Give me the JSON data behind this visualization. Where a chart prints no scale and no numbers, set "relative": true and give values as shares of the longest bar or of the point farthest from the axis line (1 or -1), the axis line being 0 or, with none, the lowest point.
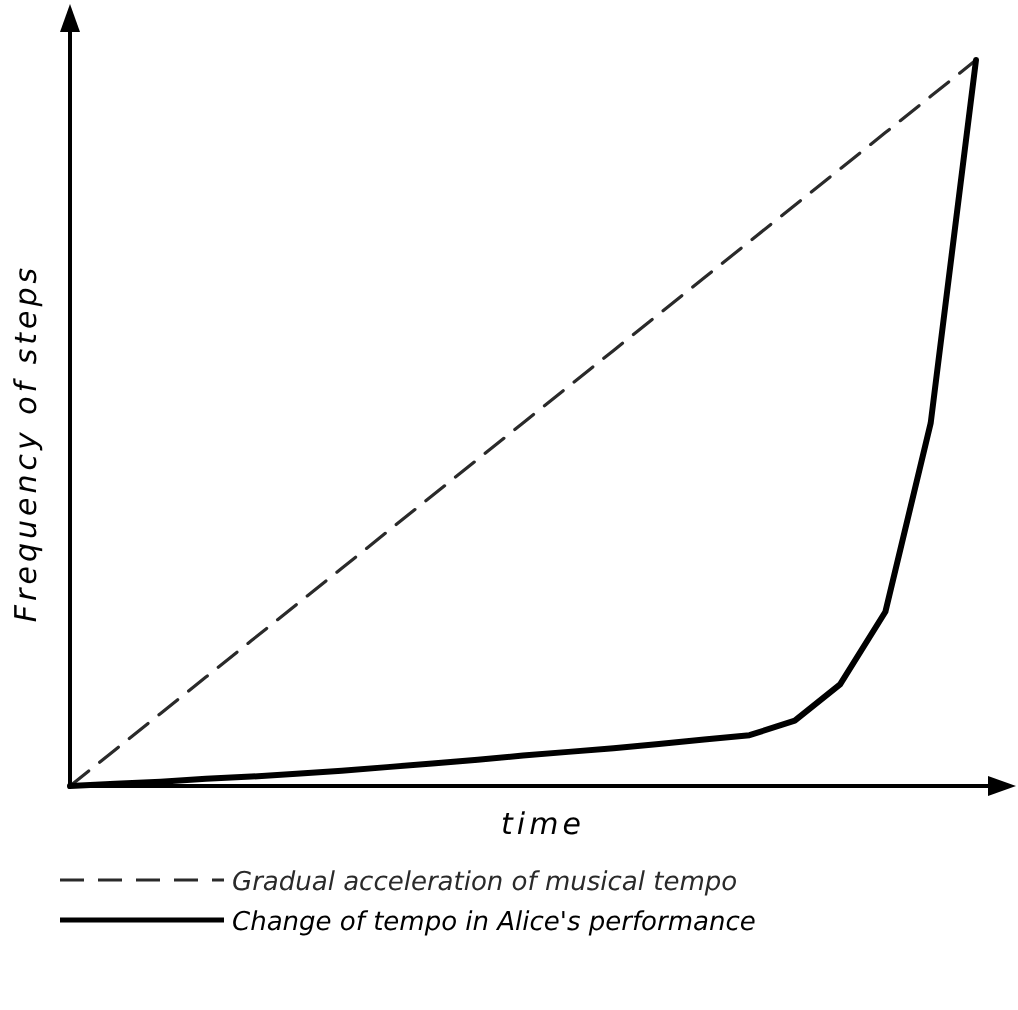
{
  "chart_data": {
    "type": "line",
    "relative": true,
    "xlabel": "time",
    "ylabel": "Frequency of steps",
    "legend": "bottom",
    "categories": [
      null,
      null,
      null,
      null,
      null,
      null,
      null,
      null,
      null,
      null,
      null,
      null,
      null,
      null,
      null,
      null,
      null,
      null,
      null,
      null,
      null
    ],
    "series": [
      {
        "name": "Gradual acceleration of musical tempo",
        "color": "#2a2a2a",
        "line_style": "dashed",
        "values": [
          0,
          0.05,
          0.1,
          0.15,
          0.2,
          0.25,
          0.3,
          0.35,
          0.4,
          0.45,
          0.5,
          0.55,
          0.6,
          0.65,
          0.7,
          0.75,
          0.8,
          0.85,
          0.9,
          0.95,
          1
        ]
      },
      {
        "name": "Change of tempo in Alice's performance",
        "color": "#000000",
        "line_style": "solid",
        "values": [
          0,
          0.003,
          0.006,
          0.01,
          0.013,
          0.017,
          0.021,
          0.026,
          0.031,
          0.036,
          0.042,
          0.047,
          0.052,
          0.058,
          0.064,
          0.07,
          0.09,
          0.14,
          0.24,
          0.5,
          1
        ]
      }
    ]
  }
}
